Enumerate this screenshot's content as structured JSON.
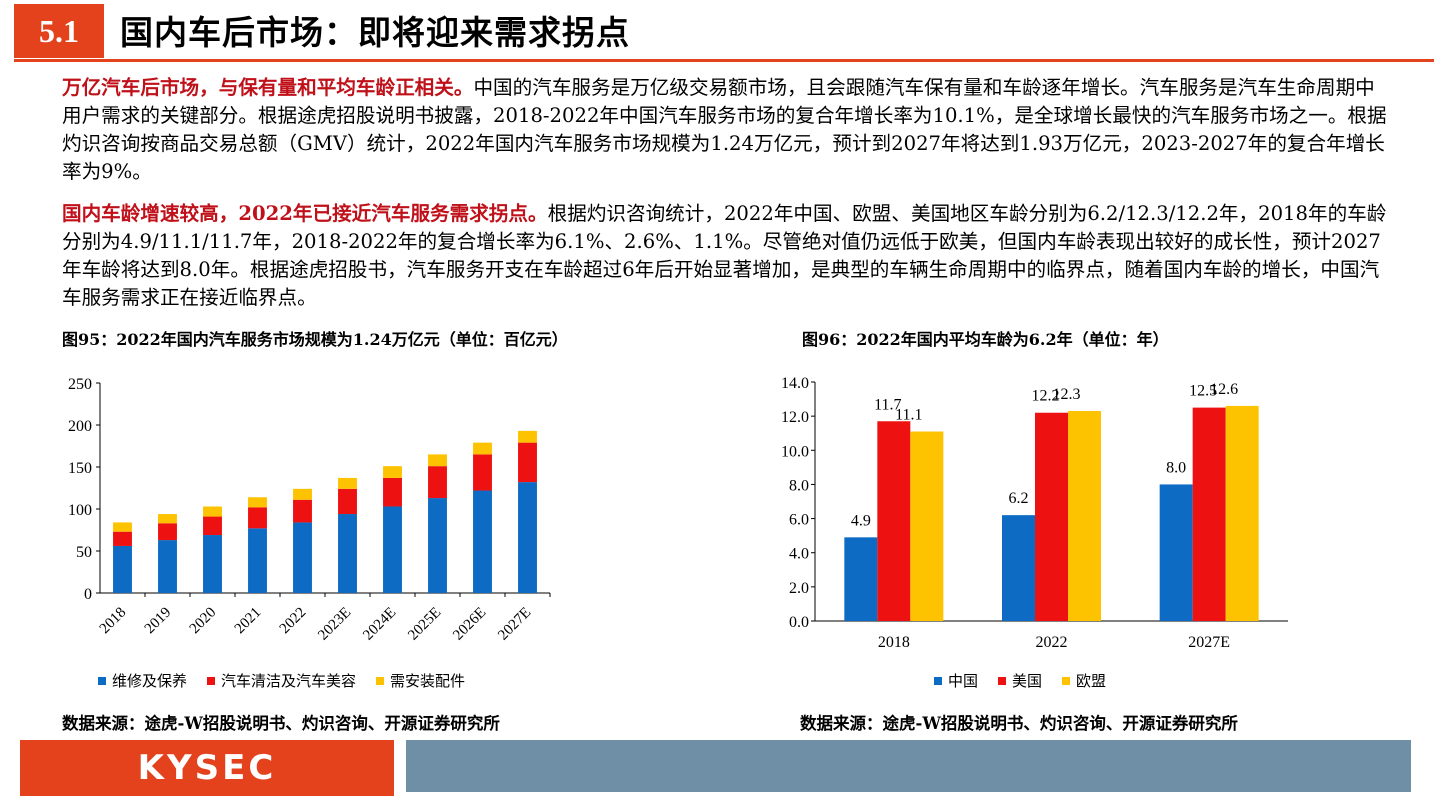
{
  "header": {
    "section_number": "5.1",
    "title": "国内车后市场：即将迎来需求拐点"
  },
  "paragraphs": [
    {
      "highlight": "万亿汽车后市场，与保有量和平均车龄正相关。",
      "body": "中国的汽车服务是万亿级交易额市场，且会跟随汽车保有量和车龄逐年增长。汽车服务是汽车生命周期中用户需求的关键部分。根据途虎招股说明书披露，2018-2022年中国汽车服务市场的复合年增长率为10.1%，是全球增长最快的汽车服务市场之一。根据灼识咨询按商品交易总额（GMV）统计，2022年国内汽车服务市场规模为1.24万亿元，预计到2027年将达到1.93万亿元，2023-2027年的复合年增长率为9%。"
    },
    {
      "highlight": "国内车龄增速较高，2022年已接近汽车服务需求拐点。",
      "body": "根据灼识咨询统计，2022年中国、欧盟、美国地区车龄分别为6.2/12.3/12.2年，2018年的车龄分别为4.9/11.1/11.7年，2018-2022年的复合增长率为6.1%、2.6%、1.1%。尽管绝对值仍远低于欧美，但国内车龄表现出较好的成长性，预计2027年车龄将达到8.0年。根据途虎招股书，汽车服务开支在车龄超过6年后开始显著增加，是典型的车辆生命周期中的临界点，随着国内车龄的增长，中国汽车服务需求正在接近临界点。"
    }
  ],
  "figures": {
    "fig95": {
      "title": "图95：2022年国内汽车服务市场规模为1.24万亿元（单位：百亿元）",
      "source": "数据来源：途虎-W招股说明书、灼识咨询、开源证券研究所"
    },
    "fig96": {
      "title": "图96：2022年国内平均车龄为6.2年（单位：年）",
      "source": "数据来源：途虎-W招股说明书、灼识咨询、开源证券研究所"
    }
  },
  "footer": {
    "logo_text": "KYSEC"
  },
  "colors": {
    "accent": "#e3421d",
    "blue": "#0d6bc4",
    "red": "#ee1111",
    "yellow": "#fdc200",
    "footer_bar": "#6e8fa5"
  },
  "chart_data": [
    {
      "type": "bar",
      "stacked": true,
      "categories": [
        "2018",
        "2019",
        "2020",
        "2021",
        "2022",
        "2023E",
        "2024E",
        "2025E",
        "2026E",
        "2027E"
      ],
      "series": [
        {
          "name": "维修及保养",
          "color": "#0d6bc4",
          "values": [
            56,
            63,
            69,
            77,
            84,
            94,
            103,
            113,
            122,
            132
          ]
        },
        {
          "name": "汽车清洁及汽车美容",
          "color": "#ee1111",
          "values": [
            17,
            20,
            22,
            25,
            27,
            30,
            34,
            38,
            43,
            47
          ]
        },
        {
          "name": "需安装配件",
          "color": "#fdc200",
          "values": [
            11,
            11,
            12,
            12,
            13,
            13,
            14,
            14,
            14,
            14
          ]
        }
      ],
      "ylim": [
        0,
        250
      ],
      "yticks": [
        "0",
        "50",
        "100",
        "150",
        "200",
        "250"
      ],
      "grid": false,
      "legend": "bottom"
    },
    {
      "type": "bar",
      "categories": [
        "2018",
        "2022",
        "2027E"
      ],
      "series": [
        {
          "name": "中国",
          "color": "#0d6bc4",
          "values": [
            4.9,
            6.2,
            8.0
          ],
          "labels": [
            "4.9",
            "6.2",
            "8.0"
          ]
        },
        {
          "name": "美国",
          "color": "#ee1111",
          "values": [
            11.7,
            12.2,
            12.5
          ],
          "labels": [
            "11.7",
            "12.2",
            "12.5"
          ]
        },
        {
          "name": "欧盟",
          "color": "#fdc200",
          "values": [
            11.1,
            12.3,
            12.6
          ],
          "labels": [
            "11.1",
            "12.3",
            "12.6"
          ]
        }
      ],
      "ylim": [
        0,
        14
      ],
      "yticks": [
        "0.0",
        "2.0",
        "4.0",
        "6.0",
        "8.0",
        "10.0",
        "12.0",
        "14.0"
      ],
      "grid": false,
      "legend": "bottom"
    }
  ]
}
